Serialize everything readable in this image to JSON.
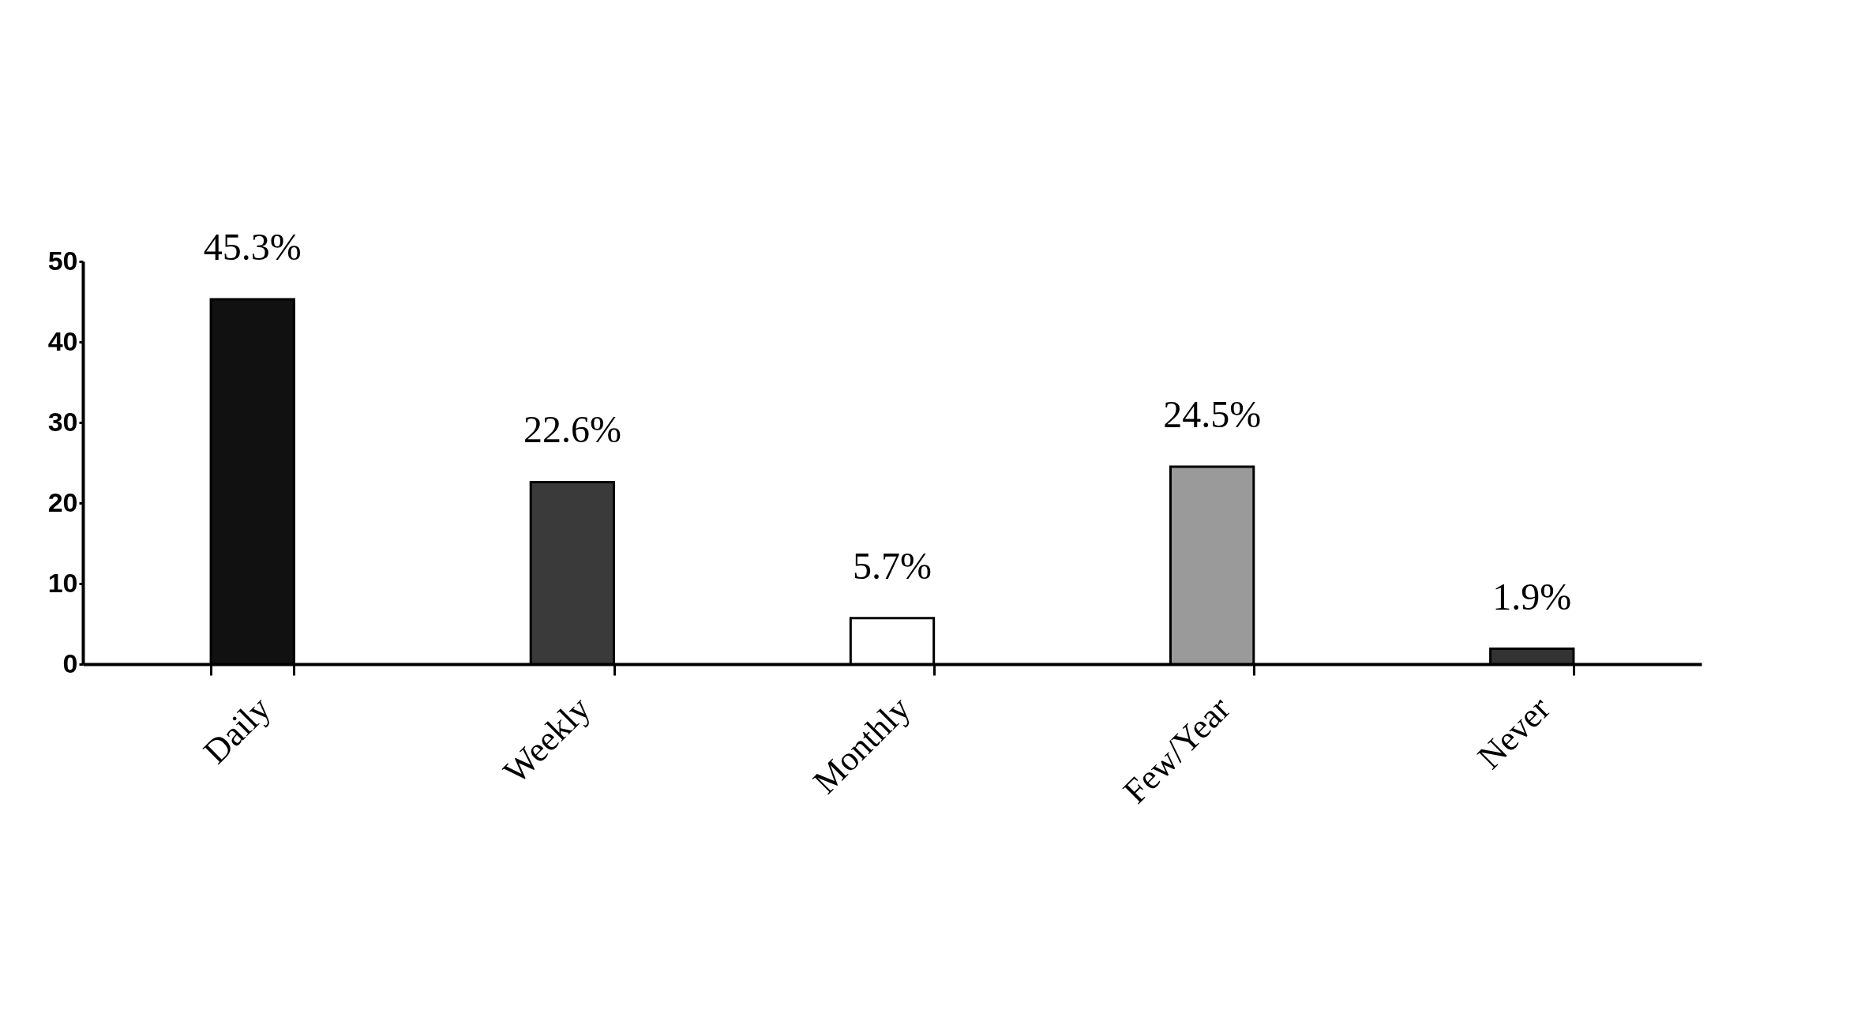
{
  "chart_data": {
    "type": "bar",
    "categories": [
      "Daily",
      "Weekly",
      "Monthly",
      "Few/Year",
      "Never"
    ],
    "values": [
      45.3,
      22.6,
      5.7,
      24.5,
      1.9
    ],
    "value_labels": [
      "45.3%",
      "22.6%",
      "5.7%",
      "24.5%",
      "1.9%"
    ],
    "colors": [
      "#111111",
      "#3a3a3a",
      "#ffffff",
      "#9a9a9a",
      "#333333"
    ],
    "ylim": [
      0,
      50
    ],
    "yticks": [
      0,
      10,
      20,
      30,
      40,
      50
    ],
    "grid": false
  }
}
